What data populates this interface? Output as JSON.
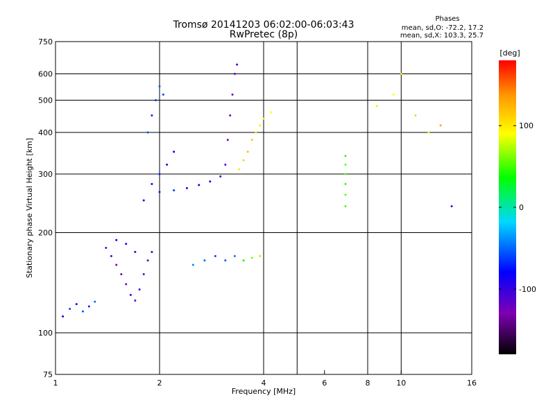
{
  "chart_data": {
    "type": "scatter",
    "title": "Tromsø 20141203 06:02:00-06:03:43",
    "subtitle": "RwPretec (8p)",
    "xlabel": "Frequency [MHz]",
    "ylabel": "Stationary phase Virtual Height [km]",
    "x_scale": "log",
    "y_scale": "log",
    "xlim": [
      1,
      16
    ],
    "ylim": [
      75,
      750
    ],
    "x_ticks": [
      1,
      2,
      4,
      6,
      8,
      10,
      16
    ],
    "x_tick_labels": [
      "1",
      "2",
      "4",
      "6",
      "8",
      "10",
      "16"
    ],
    "y_ticks": [
      75,
      100,
      200,
      300,
      400,
      500,
      600,
      750
    ],
    "y_tick_labels": [
      "75",
      "100",
      "200",
      "300",
      "400",
      "500",
      "600",
      "750"
    ],
    "x_gridlines": [
      2,
      4,
      5,
      8,
      10
    ],
    "y_gridlines": [
      100,
      200,
      300,
      400,
      500,
      600
    ],
    "grid": true,
    "stats_header": "Phases",
    "stats_lines": [
      "mean, sd,O: -72.2, 17.2",
      "mean, sd,X: 103.3, 25.7"
    ],
    "colorbar": {
      "label": "[deg]",
      "range": [
        -180,
        180
      ],
      "ticks": [
        100,
        0,
        -100
      ],
      "tick_labels": [
        "100",
        "0",
        "-100"
      ],
      "colors": [
        "#000000",
        "#7f00b4",
        "#0000ff",
        "#00d8ff",
        "#00ff00",
        "#ffff00",
        "#ff9900",
        "#ff0000"
      ]
    },
    "series": [
      {
        "points": [
          [
            1.05,
            112,
            -80
          ],
          [
            1.1,
            118,
            -60
          ],
          [
            1.15,
            122,
            -75
          ],
          [
            1.2,
            116,
            -55
          ],
          [
            1.25,
            120,
            -70
          ],
          [
            1.3,
            124,
            -50
          ]
        ]
      },
      {
        "points": [
          [
            1.4,
            180,
            -120
          ],
          [
            1.45,
            170,
            -110
          ],
          [
            1.5,
            160,
            -130
          ],
          [
            1.55,
            150,
            -115
          ],
          [
            1.6,
            140,
            -125
          ],
          [
            1.65,
            130,
            -105
          ],
          [
            1.7,
            125,
            -120
          ],
          [
            1.75,
            135,
            -110
          ],
          [
            1.8,
            150,
            -115
          ],
          [
            1.85,
            165,
            -120
          ],
          [
            1.9,
            175,
            -100
          ],
          [
            1.5,
            190,
            -80
          ],
          [
            1.6,
            185,
            -90
          ],
          [
            1.7,
            175,
            -95
          ]
        ]
      },
      {
        "points": [
          [
            1.8,
            250,
            -90
          ],
          [
            1.9,
            280,
            -85
          ],
          [
            2.0,
            300,
            -70
          ],
          [
            2.1,
            320,
            -75
          ],
          [
            2.2,
            350,
            -80
          ],
          [
            1.85,
            400,
            -60
          ],
          [
            1.9,
            450,
            -70
          ],
          [
            1.95,
            500,
            -65
          ],
          [
            2.0,
            550,
            -55
          ],
          [
            2.05,
            520,
            -60
          ]
        ]
      },
      {
        "points": [
          [
            2.0,
            265,
            -70
          ],
          [
            2.2,
            268,
            -65
          ],
          [
            2.4,
            272,
            -75
          ],
          [
            2.6,
            278,
            -80
          ],
          [
            2.8,
            285,
            -90
          ],
          [
            3.0,
            295,
            -100
          ],
          [
            3.1,
            320,
            -115
          ],
          [
            3.15,
            380,
            -120
          ],
          [
            3.2,
            450,
            -125
          ],
          [
            3.25,
            520,
            -120
          ],
          [
            3.3,
            600,
            -115
          ],
          [
            3.35,
            640,
            -110
          ]
        ]
      },
      {
        "points": [
          [
            3.4,
            310,
            100
          ],
          [
            3.5,
            330,
            110
          ],
          [
            3.6,
            350,
            120
          ],
          [
            3.7,
            380,
            115
          ],
          [
            3.8,
            400,
            105
          ],
          [
            3.9,
            420,
            100
          ],
          [
            4.0,
            440,
            95
          ],
          [
            4.2,
            460,
            90
          ]
        ]
      },
      {
        "points": [
          [
            2.5,
            160,
            -40
          ],
          [
            2.7,
            165,
            -50
          ],
          [
            2.9,
            170,
            -60
          ],
          [
            3.1,
            165,
            -55
          ],
          [
            3.3,
            170,
            -45
          ],
          [
            3.5,
            165,
            40
          ],
          [
            3.7,
            168,
            60
          ],
          [
            3.9,
            170,
            70
          ]
        ]
      },
      {
        "points": [
          [
            6.9,
            240,
            50
          ],
          [
            6.9,
            260,
            55
          ],
          [
            6.9,
            280,
            45
          ],
          [
            6.9,
            300,
            50
          ],
          [
            6.9,
            320,
            55
          ],
          [
            6.9,
            340,
            45
          ]
        ]
      },
      {
        "points": [
          [
            8.5,
            480,
            80
          ],
          [
            9.5,
            520,
            90
          ],
          [
            10,
            600,
            110
          ],
          [
            11,
            450,
            70
          ],
          [
            12,
            400,
            100
          ],
          [
            13,
            420,
            130
          ],
          [
            14,
            240,
            -100
          ]
        ]
      }
    ]
  }
}
